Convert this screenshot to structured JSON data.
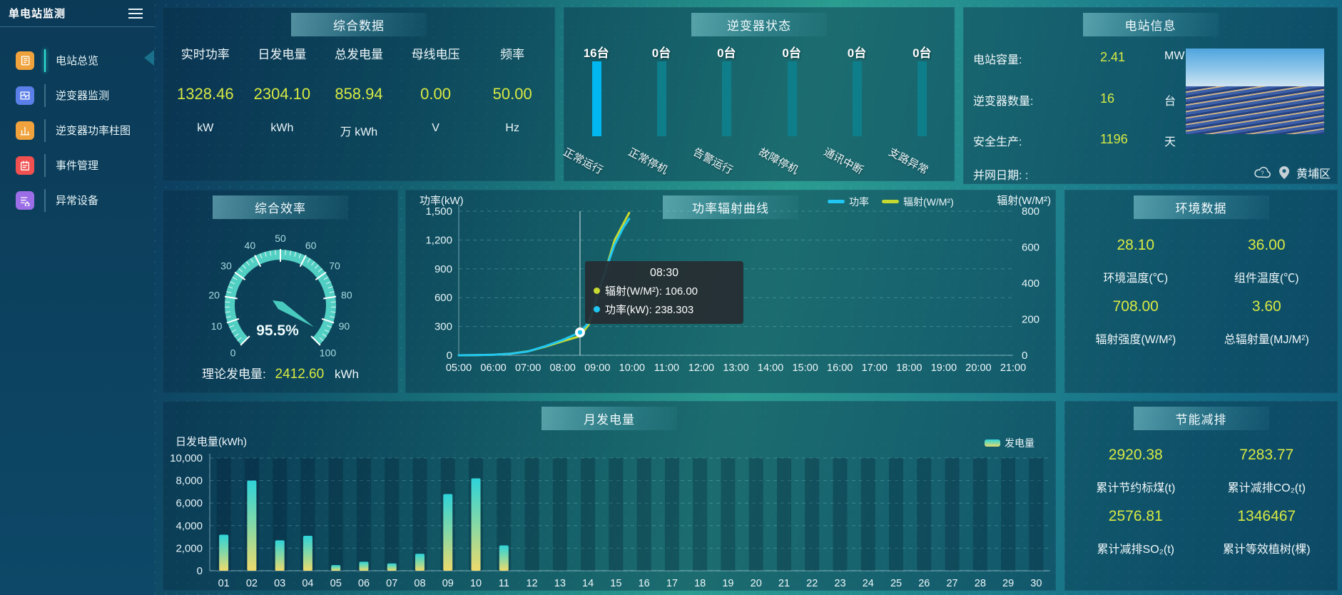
{
  "app": {
    "title": "单电站监测"
  },
  "sidebar": {
    "items": [
      {
        "label": "电站总览",
        "icon": "overview",
        "color": "#f0a23c",
        "active": true
      },
      {
        "label": "逆变器监测",
        "icon": "monitor",
        "color": "#5b7fe8",
        "active": false
      },
      {
        "label": "逆变器功率柱图",
        "icon": "bar-chart",
        "color": "#f0a23c",
        "active": false
      },
      {
        "label": "事件管理",
        "icon": "events",
        "color": "#f05050",
        "active": false
      },
      {
        "label": "异常设备",
        "icon": "abnormal",
        "color": "#9b6ee8",
        "active": false
      }
    ]
  },
  "panels": {
    "summary": {
      "title": "综合数据",
      "metrics": [
        {
          "label": "实时功率",
          "value": "1328.46",
          "unit": "kW"
        },
        {
          "label": "日发电量",
          "value": "2304.10",
          "unit": "kWh"
        },
        {
          "label": "总发电量",
          "value": "858.94",
          "unit": "万 kWh"
        },
        {
          "label": "母线电压",
          "value": "0.00",
          "unit": "V"
        },
        {
          "label": "频率",
          "value": "50.00",
          "unit": "Hz"
        }
      ]
    },
    "inverter": {
      "title": "逆变器状态"
    },
    "station": {
      "title": "电站信息",
      "rows": [
        {
          "label": "电站容量:",
          "value": "2.41",
          "unit": "MW"
        },
        {
          "label": "逆变器数量:",
          "value": "16",
          "unit": "台"
        },
        {
          "label": "安全生产:",
          "value": "1196",
          "unit": "天"
        },
        {
          "label": "并网日期: :",
          "value": "",
          "unit": ""
        }
      ],
      "location": "黄埔区"
    },
    "efficiency": {
      "title": "综合效率",
      "theory_label": "理论发电量:",
      "theory_value": "2412.60",
      "theory_unit": "kWh"
    },
    "curve": {
      "title": "功率辐射曲线"
    },
    "environment": {
      "title": "环境数据",
      "items": [
        {
          "value": "28.10",
          "label": "环境温度(℃)"
        },
        {
          "value": "36.00",
          "label": "组件温度(℃)"
        },
        {
          "value": "708.00",
          "label": "辐射强度(W/M²)"
        },
        {
          "value": "3.60",
          "label": "总辐射量(MJ/M²)"
        }
      ]
    },
    "monthly": {
      "title": "月发电量"
    },
    "saving": {
      "title": "节能减排",
      "items": [
        {
          "value": "2920.38",
          "label": "累计节约标煤(t)"
        },
        {
          "value": "7283.77",
          "label": "累计减排CO₂(t)"
        },
        {
          "value": "2576.81",
          "label": "累计减排SO₂(t)"
        },
        {
          "value": "1346467",
          "label": "累计等效植树(棵)"
        }
      ]
    }
  },
  "chart_data": [
    {
      "id": "inverter-status",
      "type": "bar",
      "title": "逆变器状态",
      "categories": [
        "正常运行",
        "正常停机",
        "告警运行",
        "故障停机",
        "通讯中断",
        "支路异常"
      ],
      "values": [
        16,
        0,
        0,
        0,
        0,
        0
      ],
      "value_labels": [
        "16台",
        "0台",
        "0台",
        "0台",
        "0台",
        "0台"
      ],
      "highlight_color": "#00b7f0",
      "normal_color": "#0e7f8a"
    },
    {
      "id": "efficiency-gauge",
      "type": "gauge",
      "min": 0,
      "max": 100,
      "value": 95.5,
      "display": "95.5%",
      "ticks": [
        0,
        10,
        20,
        30,
        40,
        50,
        60,
        70,
        80,
        90,
        100
      ],
      "arc_color": "#52cfc3"
    },
    {
      "id": "power-radiation",
      "type": "line",
      "title": "功率辐射曲线",
      "x_ticks": [
        "05:00",
        "06:00",
        "07:00",
        "08:00",
        "09:00",
        "10:00",
        "11:00",
        "12:00",
        "13:00",
        "14:00",
        "15:00",
        "16:00",
        "17:00",
        "18:00",
        "19:00",
        "20:00",
        "21:00"
      ],
      "x_range_minutes": 960,
      "left_axis": {
        "label": "功率(kW)",
        "max": 1500,
        "ticks": [
          "1,500",
          "1,200",
          "900",
          "600",
          "300",
          "0"
        ]
      },
      "right_axis": {
        "label": "辐射(W/M²)",
        "max": 800,
        "ticks": [
          "800",
          "600",
          "400",
          "200",
          "0"
        ]
      },
      "legend": [
        "功率",
        "辐射(W/M²)"
      ],
      "series": [
        {
          "name": "辐射(W/M²)",
          "color": "#c6d930",
          "axis": "right",
          "points": [
            [
              0,
              0
            ],
            [
              30,
              1
            ],
            [
              60,
              3
            ],
            [
              90,
              9
            ],
            [
              120,
              22
            ],
            [
              150,
              48
            ],
            [
              180,
              78
            ],
            [
              210,
              106
            ],
            [
              225,
              170
            ],
            [
              240,
              330
            ],
            [
              255,
              480
            ],
            [
              270,
              640
            ],
            [
              285,
              730
            ],
            [
              295,
              790
            ]
          ]
        },
        {
          "name": "功率",
          "color": "#1fc7f2",
          "axis": "left",
          "points": [
            [
              0,
              0
            ],
            [
              30,
              2
            ],
            [
              60,
              6
            ],
            [
              90,
              16
            ],
            [
              120,
              40
            ],
            [
              150,
              95
            ],
            [
              180,
              160
            ],
            [
              210,
              238.3
            ],
            [
              225,
              340
            ],
            [
              240,
              620
            ],
            [
              255,
              900
            ],
            [
              270,
              1150
            ],
            [
              285,
              1330
            ],
            [
              295,
              1420
            ]
          ]
        }
      ],
      "tooltip": {
        "time": "08:30",
        "x_minutes": 210,
        "marker_value": 238.3,
        "rows": [
          {
            "color": "#c6d930",
            "text": "辐射(W/M²): 106.00"
          },
          {
            "color": "#1fc7f2",
            "text": "功率(kW): 238.303"
          }
        ]
      }
    },
    {
      "id": "monthly-energy",
      "type": "bar",
      "title": "月发电量",
      "ylabel": "日发电量(kWh)",
      "legend": "发电量",
      "ymax": 10000,
      "y_ticks": [
        "10,000",
        "8,000",
        "6,000",
        "4,000",
        "2,000",
        "0"
      ],
      "categories": [
        "01",
        "02",
        "03",
        "04",
        "05",
        "06",
        "07",
        "08",
        "09",
        "10",
        "11",
        "12",
        "13",
        "14",
        "15",
        "16",
        "17",
        "18",
        "19",
        "20",
        "21",
        "22",
        "23",
        "24",
        "25",
        "26",
        "27",
        "28",
        "29",
        "30"
      ],
      "values": [
        3200,
        8000,
        2700,
        3100,
        500,
        800,
        650,
        1500,
        6800,
        8200,
        2250,
        0,
        0,
        0,
        0,
        0,
        0,
        0,
        0,
        0,
        0,
        0,
        0,
        0,
        0,
        0,
        0,
        0,
        0,
        0
      ]
    }
  ]
}
